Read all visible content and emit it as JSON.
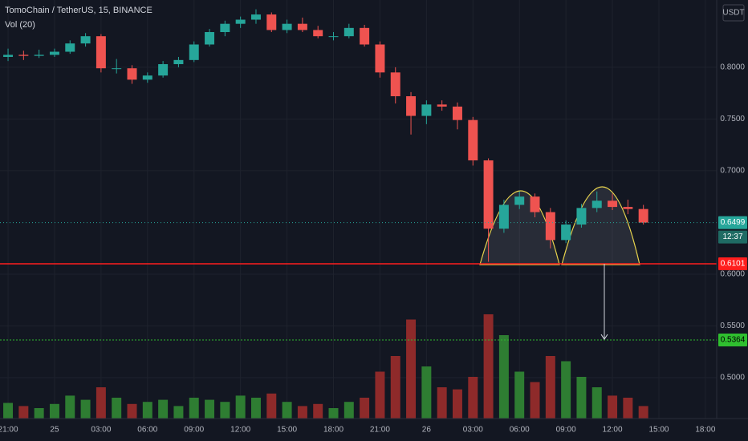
{
  "chart_data": {
    "type": "candlestick",
    "title": "TomoChain / TetherUS, 15, BINANCE",
    "volume_label": "Vol (20)",
    "currency": "USDT",
    "up_color": "#26a69a",
    "down_color": "#ef5350",
    "volume_up_color": "#2e7d32",
    "volume_down_color": "#8e2a2a",
    "grid": true,
    "x": [
      21,
      22,
      23,
      24,
      25,
      26,
      27,
      28,
      29,
      30,
      31,
      32,
      33,
      34,
      35,
      36,
      37,
      38,
      39,
      40,
      41,
      42,
      43,
      44,
      45,
      46,
      47,
      48,
      49,
      50,
      51,
      52,
      53,
      54,
      55,
      56,
      57,
      58,
      59,
      60,
      61,
      62
    ],
    "open": [
      0.81,
      0.812,
      0.811,
      0.812,
      0.815,
      0.823,
      0.83,
      0.799,
      0.799,
      0.788,
      0.792,
      0.803,
      0.807,
      0.822,
      0.834,
      0.842,
      0.846,
      0.851,
      0.836,
      0.842,
      0.836,
      0.83,
      0.83,
      0.838,
      0.822,
      0.795,
      0.772,
      0.753,
      0.764,
      0.762,
      0.749,
      0.71,
      0.644,
      0.667,
      0.675,
      0.66,
      0.633,
      0.648,
      0.664,
      0.671,
      0.665,
      0.663
    ],
    "high": [
      0.818,
      0.816,
      0.817,
      0.818,
      0.826,
      0.833,
      0.832,
      0.808,
      0.802,
      0.795,
      0.806,
      0.81,
      0.825,
      0.837,
      0.845,
      0.849,
      0.856,
      0.853,
      0.846,
      0.848,
      0.84,
      0.834,
      0.842,
      0.841,
      0.825,
      0.8,
      0.776,
      0.768,
      0.768,
      0.766,
      0.752,
      0.712,
      0.672,
      0.68,
      0.678,
      0.664,
      0.652,
      0.668,
      0.68,
      0.678,
      0.672,
      0.667
    ],
    "low": [
      0.806,
      0.807,
      0.809,
      0.81,
      0.813,
      0.82,
      0.795,
      0.794,
      0.784,
      0.785,
      0.79,
      0.8,
      0.805,
      0.82,
      0.83,
      0.838,
      0.842,
      0.834,
      0.833,
      0.834,
      0.828,
      0.826,
      0.828,
      0.82,
      0.79,
      0.765,
      0.735,
      0.745,
      0.758,
      0.74,
      0.705,
      0.612,
      0.64,
      0.663,
      0.655,
      0.625,
      0.63,
      0.645,
      0.66,
      0.662,
      0.658,
      0.648
    ],
    "close": [
      0.812,
      0.811,
      0.812,
      0.815,
      0.823,
      0.83,
      0.799,
      0.799,
      0.788,
      0.792,
      0.803,
      0.807,
      0.822,
      0.834,
      0.842,
      0.846,
      0.851,
      0.836,
      0.842,
      0.836,
      0.83,
      0.83,
      0.838,
      0.822,
      0.795,
      0.772,
      0.753,
      0.764,
      0.762,
      0.749,
      0.71,
      0.644,
      0.667,
      0.675,
      0.66,
      0.633,
      0.648,
      0.664,
      0.671,
      0.665,
      0.663,
      0.6499
    ],
    "volume": [
      15,
      12,
      10,
      14,
      22,
      18,
      30,
      20,
      14,
      16,
      18,
      12,
      20,
      18,
      16,
      22,
      20,
      24,
      16,
      12,
      14,
      10,
      16,
      20,
      45,
      60,
      95,
      50,
      30,
      28,
      40,
      100,
      80,
      45,
      35,
      60,
      55,
      40,
      30,
      22,
      20,
      12
    ],
    "vlim": [
      0,
      100
    ],
    "xlim": [
      20.48,
      66.73
    ],
    "ylim": [
      0.4605,
      0.865
    ],
    "xticks": [
      {
        "value": 21,
        "label": "21:00"
      },
      {
        "value": 24,
        "label": "25"
      },
      {
        "value": 27,
        "label": "03:00"
      },
      {
        "value": 30,
        "label": "06:00"
      },
      {
        "value": 33,
        "label": "09:00"
      },
      {
        "value": 36,
        "label": "12:00"
      },
      {
        "value": 39,
        "label": "15:00"
      },
      {
        "value": 42,
        "label": "18:00"
      },
      {
        "value": 45,
        "label": "21:00"
      },
      {
        "value": 48,
        "label": "26"
      },
      {
        "value": 51,
        "label": "03:00"
      },
      {
        "value": 54,
        "label": "06:00"
      },
      {
        "value": 57,
        "label": "09:00"
      },
      {
        "value": 60,
        "label": "12:00"
      },
      {
        "value": 63,
        "label": "15:00"
      },
      {
        "value": 66,
        "label": "18:00"
      }
    ],
    "yticks": [
      {
        "value": 0.5,
        "label": "0.5000"
      },
      {
        "value": 0.55,
        "label": "0.5500"
      },
      {
        "value": 0.6,
        "label": "0.6000"
      },
      {
        "value": 0.7,
        "label": "0.7000"
      },
      {
        "value": 0.75,
        "label": "0.7500"
      },
      {
        "value": 0.8,
        "label": "0.8000"
      }
    ],
    "last_price": 0.6499,
    "countdown": "12:37",
    "support_level": 0.6101,
    "target_level": 0.5364
  }
}
